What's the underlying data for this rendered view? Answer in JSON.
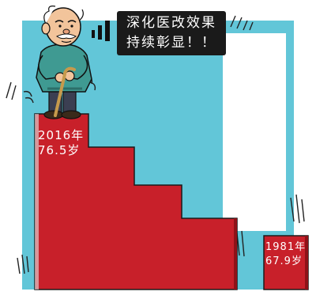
{
  "speech": {
    "line1": "深化医改效果",
    "line2": "持续彰显！！"
  },
  "bars": {
    "y2016": {
      "year": "2016年",
      "value": "76.5岁"
    },
    "y1981": {
      "year": "1981年",
      "value": "67.9岁"
    }
  },
  "colors": {
    "sky": "#62c6d8",
    "bar_red": "#c8202a",
    "bar_red_dark": "#8e1218",
    "sweater": "#3f9a92",
    "cane": "#c69a4c"
  }
}
